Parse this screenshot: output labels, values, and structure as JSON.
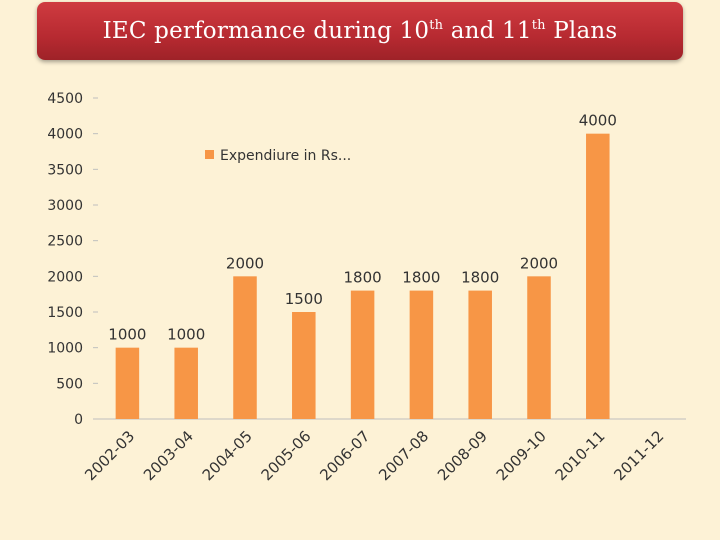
{
  "title": {
    "part1": "IEC performance during 10",
    "sup1": "th",
    "part2": " and 11",
    "sup2": "th",
    "part3": " Plans"
  },
  "colors": {
    "bar": "#f79646",
    "banner": "#b72a31",
    "background": "#fdf2d6"
  },
  "chart_data": {
    "type": "bar",
    "categories": [
      "2002-03",
      "2003-04",
      "2004-05",
      "2005-06",
      "2006-07",
      "2007-08",
      "2008-09",
      "2009-10",
      "2010-11",
      "2011-12"
    ],
    "series": [
      {
        "name": "Expendiure in Rs...",
        "values": [
          1000,
          1000,
          2000,
          1500,
          1800,
          1800,
          1800,
          2000,
          4000,
          null
        ]
      }
    ],
    "ylim": [
      0,
      4500
    ],
    "yticks": [
      0,
      500,
      1000,
      1500,
      2000,
      2500,
      3000,
      3500,
      4000,
      4500
    ],
    "data_labels": true,
    "grid": false,
    "legend_position": "top-left inside plot"
  }
}
